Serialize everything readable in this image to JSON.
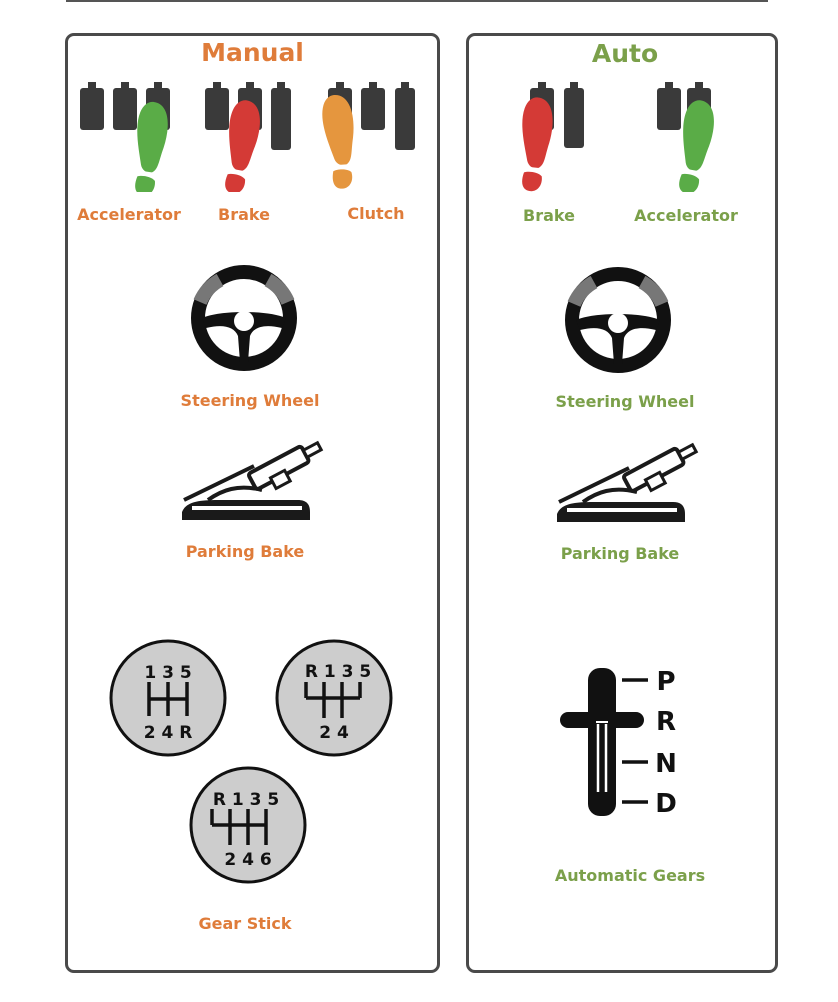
{
  "manual": {
    "title": "Manual",
    "pedals": [
      "Accelerator",
      "Brake",
      "Clutch"
    ],
    "steering_label": "Steering Wheel",
    "parking_label": "Parking Bake",
    "gear_label": "Gear Stick",
    "gear_patterns": [
      {
        "top": "1 3 5",
        "bottom": "2 4 R"
      },
      {
        "top": "R 1 3 5",
        "bottom": "2 4"
      },
      {
        "top": "R 1 3 5",
        "bottom": "2 4 6"
      }
    ]
  },
  "auto": {
    "title": "Auto",
    "pedals": [
      "Brake",
      "Accelerator"
    ],
    "steering_label": "Steering Wheel",
    "parking_label": "Parking Bake",
    "gear_label": "Automatic Gears",
    "gear_positions": [
      "P",
      "R",
      "N",
      "D"
    ]
  },
  "colors": {
    "manual_accent": "#df7c3a",
    "auto_accent": "#7ba04a",
    "accelerator_foot": "#5aac47",
    "brake_foot": "#d43a36",
    "clutch_foot": "#e5963e"
  }
}
